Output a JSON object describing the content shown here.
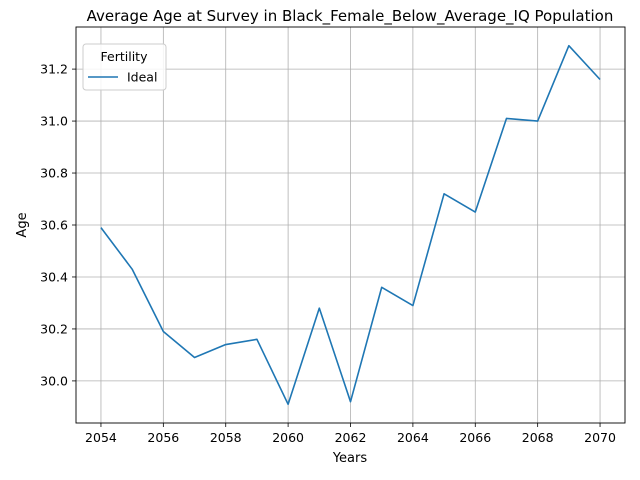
{
  "chart_data": {
    "type": "line",
    "title": "Average Age at Survey in Black_Female_Below_Average_IQ Population",
    "xlabel": "Years",
    "ylabel": "Age",
    "x": [
      2054,
      2055,
      2056,
      2057,
      2058,
      2059,
      2060,
      2061,
      2062,
      2063,
      2064,
      2065,
      2066,
      2067,
      2068,
      2069,
      2070
    ],
    "xticks": [
      2054,
      2056,
      2058,
      2060,
      2062,
      2064,
      2066,
      2068,
      2070
    ],
    "yticks": [
      30.0,
      30.2,
      30.4,
      30.6,
      30.8,
      31.0,
      31.2
    ],
    "xlim": [
      2053.2,
      2070.8
    ],
    "ylim": [
      29.838,
      31.362
    ],
    "grid": true,
    "legend": {
      "title": "Fertility",
      "placement": "top-left"
    },
    "series": [
      {
        "name": "Ideal",
        "color": "#1f77b4",
        "values": [
          30.59,
          30.43,
          30.19,
          30.09,
          30.14,
          30.16,
          29.91,
          30.28,
          29.92,
          30.36,
          30.29,
          30.72,
          30.65,
          31.01,
          31.0,
          31.29,
          31.16
        ]
      }
    ]
  }
}
